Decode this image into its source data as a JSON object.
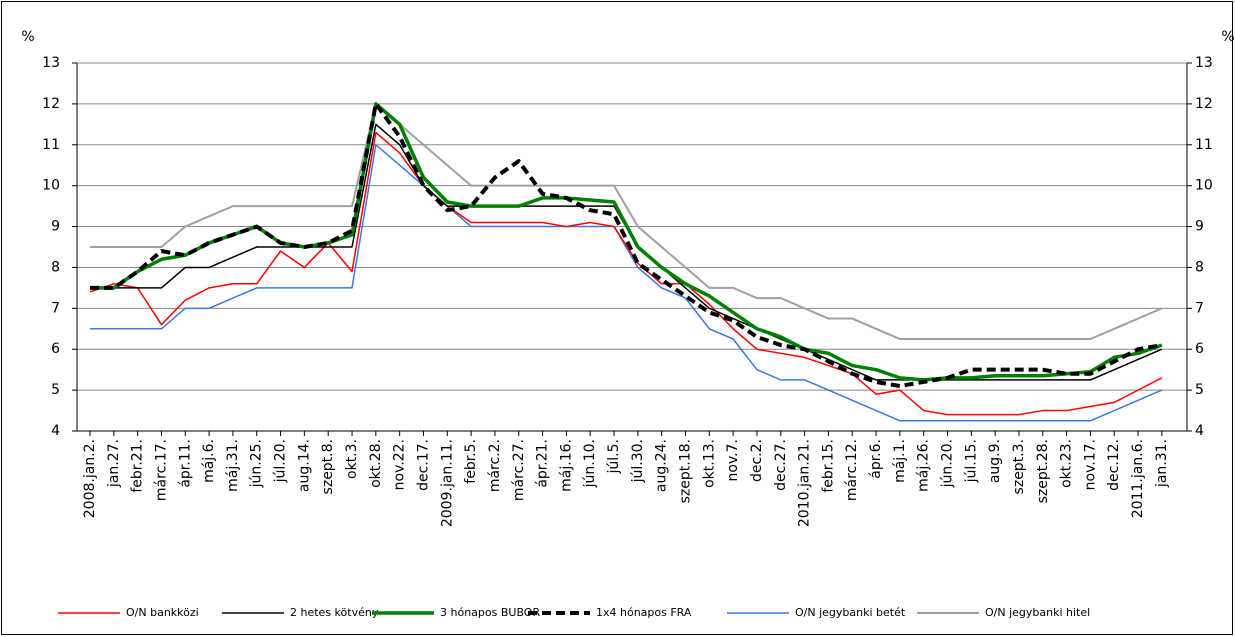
{
  "chart_data": {
    "type": "line",
    "y_label": "%",
    "y2_label": "%",
    "categories": [
      "2008.jan.2.",
      "jan.27.",
      "febr.21.",
      "márc.17.",
      "ápr.11.",
      "máj.6.",
      "máj.31.",
      "jún.25.",
      "júl.20.",
      "aug.14.",
      "szept.8.",
      "okt.3.",
      "okt.28.",
      "nov.22.",
      "dec.17.",
      "2009.jan.11.",
      "febr.5.",
      "márc.2.",
      "márc.27.",
      "ápr.21.",
      "máj.16.",
      "jún.10.",
      "júl.5.",
      "júl.30.",
      "aug.24.",
      "szept.18.",
      "okt.13.",
      "nov.7.",
      "dec.2.",
      "dec.27.",
      "2010.jan.21.",
      "febr.15.",
      "márc.12.",
      "ápr.6.",
      "máj.1.",
      "máj.26.",
      "jún.20.",
      "júl.15.",
      "aug.9.",
      "szept.3.",
      "szept.28.",
      "okt.23.",
      "nov.17.",
      "dec.12.",
      "2011.jan.6.",
      "jan.31."
    ],
    "ylim": [
      4,
      13
    ],
    "yticks": [
      4,
      5,
      6,
      7,
      8,
      9,
      10,
      11,
      12,
      13
    ],
    "y2lim": [
      4,
      13
    ],
    "y2ticks": [
      4,
      5,
      6,
      7,
      8,
      9,
      10,
      11,
      12,
      13
    ],
    "grid": true,
    "legend": "bottom",
    "series": [
      {
        "name": "O/N bankközi",
        "color": "#ff0000",
        "values": [
          7.4,
          7.6,
          7.5,
          6.6,
          7.2,
          7.5,
          7.6,
          7.6,
          8.4,
          8.0,
          8.6,
          7.9,
          11.3,
          10.8,
          10.0,
          9.5,
          9.1,
          9.1,
          9.1,
          9.1,
          9.0,
          9.1,
          9.0,
          8.1,
          7.6,
          7.6,
          7.1,
          6.5,
          6.0,
          5.9,
          5.8,
          5.6,
          5.4,
          4.9,
          5.0,
          4.5,
          4.4,
          4.4,
          4.4,
          4.4,
          4.5,
          4.5,
          4.6,
          4.7,
          5.0,
          5.3
        ]
      },
      {
        "name": "2 hetes kötvény",
        "color": "#000000",
        "values": [
          7.5,
          7.5,
          7.5,
          7.5,
          8.0,
          8.0,
          8.25,
          8.5,
          8.5,
          8.5,
          8.5,
          8.5,
          11.5,
          11.0,
          10.0,
          9.5,
          9.5,
          9.5,
          9.5,
          9.5,
          9.5,
          9.5,
          9.5,
          8.5,
          8.0,
          7.5,
          7.0,
          6.75,
          6.5,
          6.25,
          6.0,
          5.75,
          5.5,
          5.25,
          5.25,
          5.25,
          5.25,
          5.25,
          5.25,
          5.25,
          5.25,
          5.25,
          5.25,
          5.5,
          5.75,
          6.0
        ]
      },
      {
        "name": "3 hónapos BUBOR",
        "color": "#008000",
        "values": [
          7.5,
          7.5,
          7.9,
          8.2,
          8.3,
          8.6,
          8.8,
          9.0,
          8.6,
          8.5,
          8.6,
          8.8,
          12.0,
          11.5,
          10.2,
          9.6,
          9.5,
          9.5,
          9.5,
          9.7,
          9.7,
          9.65,
          9.6,
          8.5,
          8.0,
          7.6,
          7.3,
          6.9,
          6.5,
          6.3,
          6.0,
          5.9,
          5.6,
          5.5,
          5.3,
          5.25,
          5.3,
          5.3,
          5.35,
          5.35,
          5.35,
          5.4,
          5.45,
          5.8,
          5.9,
          6.1
        ]
      },
      {
        "name": "1x4 hónapos FRA",
        "color": "#000000",
        "dashed": true,
        "values": [
          7.5,
          7.5,
          7.9,
          8.4,
          8.3,
          8.6,
          8.8,
          9.0,
          8.6,
          8.5,
          8.6,
          8.9,
          12.0,
          11.2,
          10.0,
          9.4,
          9.5,
          10.2,
          10.6,
          9.8,
          9.7,
          9.4,
          9.3,
          8.1,
          7.7,
          7.3,
          6.9,
          6.7,
          6.3,
          6.1,
          6.0,
          5.7,
          5.4,
          5.2,
          5.1,
          5.2,
          5.3,
          5.5,
          5.5,
          5.5,
          5.5,
          5.4,
          5.4,
          5.7,
          6.0,
          6.1
        ]
      },
      {
        "name": "O/N jegybanki betét",
        "color": "#3a78e0",
        "values": [
          6.5,
          6.5,
          6.5,
          6.5,
          7.0,
          7.0,
          7.25,
          7.5,
          7.5,
          7.5,
          7.5,
          7.5,
          11.0,
          10.5,
          10.0,
          9.5,
          9.0,
          9.0,
          9.0,
          9.0,
          9.0,
          9.0,
          9.0,
          8.0,
          7.5,
          7.25,
          6.5,
          6.25,
          5.5,
          5.25,
          5.25,
          5.0,
          4.75,
          4.5,
          4.25,
          4.25,
          4.25,
          4.25,
          4.25,
          4.25,
          4.25,
          4.25,
          4.25,
          4.5,
          4.75,
          5.0
        ]
      },
      {
        "name": "O/N jegybanki hitel",
        "color": "#a0a0a0",
        "values": [
          8.5,
          8.5,
          8.5,
          8.5,
          9.0,
          9.25,
          9.5,
          9.5,
          9.5,
          9.5,
          9.5,
          9.5,
          12.0,
          11.5,
          11.0,
          10.5,
          10.0,
          10.0,
          10.0,
          10.0,
          10.0,
          10.0,
          10.0,
          9.0,
          8.5,
          8.0,
          7.5,
          7.5,
          7.25,
          7.25,
          7.0,
          6.75,
          6.75,
          6.5,
          6.25,
          6.25,
          6.25,
          6.25,
          6.25,
          6.25,
          6.25,
          6.25,
          6.25,
          6.5,
          6.75,
          7.0
        ]
      }
    ]
  }
}
